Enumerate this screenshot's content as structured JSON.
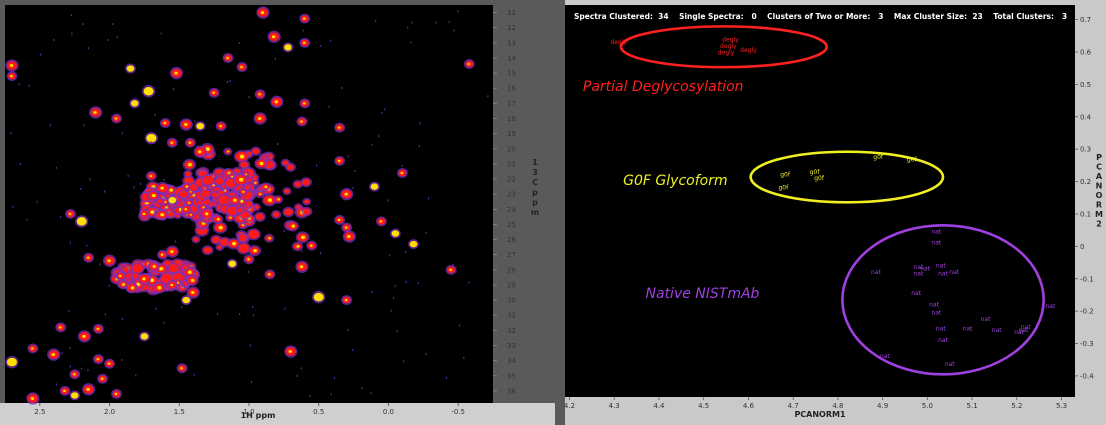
{
  "chart_data": [
    {
      "type": "heatmap",
      "xlabel": "1H ppm",
      "ylabel": "13C ppm",
      "xlim": [
        2.75,
        -0.75
      ],
      "ylim": [
        10.5,
        36.8
      ],
      "x_ticks": [
        "2.5",
        "2.0",
        "1.5",
        "1.0",
        "0.5",
        "0.0",
        "-0.5"
      ],
      "x_tick_values": [
        2.5,
        2.0,
        1.5,
        1.0,
        0.5,
        0.0,
        -0.5
      ],
      "y_ticks": [
        "11",
        "12",
        "13",
        "14",
        "15",
        "16",
        "17",
        "18",
        "19",
        "20",
        "21",
        "22",
        "23",
        "24",
        "25",
        "26",
        "27",
        "28",
        "29",
        "30",
        "31",
        "32",
        "33",
        "34",
        "35",
        "36"
      ],
      "y_tick_values": [
        11,
        12,
        13,
        14,
        15,
        16,
        17,
        18,
        19,
        20,
        21,
        22,
        23,
        24,
        25,
        26,
        27,
        28,
        29,
        30,
        31,
        32,
        33,
        34,
        35,
        36
      ],
      "colors": {
        "background": "#000000",
        "low": "#7b2fbe",
        "mid": "#ff1a1a",
        "high": "#ffe000"
      },
      "peaks": [
        {
          "x": 2.7,
          "y": 14.5
        },
        {
          "x": 2.7,
          "y": 15.2
        },
        {
          "x": 1.85,
          "y": 14.7
        },
        {
          "x": 1.52,
          "y": 15.0
        },
        {
          "x": 1.15,
          "y": 14.0
        },
        {
          "x": 1.05,
          "y": 14.6
        },
        {
          "x": 0.82,
          "y": 12.6
        },
        {
          "x": 0.72,
          "y": 13.3
        },
        {
          "x": 0.6,
          "y": 13.0
        },
        {
          "x": 0.9,
          "y": 11.0
        },
        {
          "x": 0.6,
          "y": 11.4
        },
        {
          "x": -0.58,
          "y": 14.4
        },
        {
          "x": 1.72,
          "y": 16.2
        },
        {
          "x": 1.25,
          "y": 16.3
        },
        {
          "x": 0.92,
          "y": 16.4
        },
        {
          "x": 0.8,
          "y": 16.9
        },
        {
          "x": 0.6,
          "y": 17.0
        },
        {
          "x": 1.82,
          "y": 17.0
        },
        {
          "x": 2.1,
          "y": 17.6
        },
        {
          "x": 1.95,
          "y": 18.0
        },
        {
          "x": 1.6,
          "y": 18.3
        },
        {
          "x": 1.45,
          "y": 18.4
        },
        {
          "x": 1.35,
          "y": 18.5
        },
        {
          "x": 1.2,
          "y": 18.5
        },
        {
          "x": 0.92,
          "y": 18.0
        },
        {
          "x": 0.62,
          "y": 18.2
        },
        {
          "x": 0.35,
          "y": 18.6
        },
        {
          "x": 1.7,
          "y": 19.3
        },
        {
          "x": 1.55,
          "y": 19.6
        },
        {
          "x": 1.42,
          "y": 19.6
        },
        {
          "x": 1.35,
          "y": 20.2
        },
        {
          "x": 0.35,
          "y": 20.8
        },
        {
          "x": 0.1,
          "y": 22.5
        },
        {
          "x": 0.3,
          "y": 23.0
        },
        {
          "x": -0.1,
          "y": 21.6
        },
        {
          "x": 1.7,
          "y": 21.8
        },
        {
          "x": 1.62,
          "y": 22.6
        },
        {
          "x": 1.55,
          "y": 23.4
        },
        {
          "x": 1.45,
          "y": 24.0
        },
        {
          "x": 1.3,
          "y": 24.3
        },
        {
          "x": 1.75,
          "y": 24.3
        },
        {
          "x": 2.28,
          "y": 24.3
        },
        {
          "x": 2.2,
          "y": 24.8
        },
        {
          "x": 0.35,
          "y": 24.7
        },
        {
          "x": 0.3,
          "y": 25.2
        },
        {
          "x": 0.28,
          "y": 25.8
        },
        {
          "x": 0.05,
          "y": 24.8
        },
        {
          "x": -0.05,
          "y": 25.6
        },
        {
          "x": 1.55,
          "y": 26.8
        },
        {
          "x": 1.62,
          "y": 27.0
        },
        {
          "x": 2.15,
          "y": 27.2
        },
        {
          "x": 2.0,
          "y": 27.4
        },
        {
          "x": 1.12,
          "y": 27.6
        },
        {
          "x": 1.0,
          "y": 27.3
        },
        {
          "x": 0.62,
          "y": 27.8
        },
        {
          "x": 0.55,
          "y": 26.4
        },
        {
          "x": 0.85,
          "y": 28.3
        },
        {
          "x": 0.5,
          "y": 29.8
        },
        {
          "x": 0.3,
          "y": 30.0
        },
        {
          "x": 1.92,
          "y": 28.4
        },
        {
          "x": 1.75,
          "y": 28.6
        },
        {
          "x": 1.55,
          "y": 29.0
        },
        {
          "x": 1.45,
          "y": 30.0
        },
        {
          "x": 1.4,
          "y": 29.5
        },
        {
          "x": 2.35,
          "y": 31.8
        },
        {
          "x": 2.08,
          "y": 31.9
        },
        {
          "x": 2.18,
          "y": 32.4
        },
        {
          "x": 1.75,
          "y": 32.4
        },
        {
          "x": 2.55,
          "y": 33.2
        },
        {
          "x": 2.4,
          "y": 33.6
        },
        {
          "x": 2.08,
          "y": 33.9
        },
        {
          "x": 2.0,
          "y": 34.2
        },
        {
          "x": 2.7,
          "y": 34.1
        },
        {
          "x": 2.25,
          "y": 34.9
        },
        {
          "x": 2.05,
          "y": 35.2
        },
        {
          "x": 2.15,
          "y": 35.9
        },
        {
          "x": 2.32,
          "y": 36.0
        },
        {
          "x": 2.25,
          "y": 36.3
        },
        {
          "x": 2.55,
          "y": 36.5
        },
        {
          "x": 1.95,
          "y": 36.2
        },
        {
          "x": 1.48,
          "y": 34.5
        },
        {
          "x": 0.7,
          "y": 33.4
        },
        {
          "x": -0.18,
          "y": 26.3
        },
        {
          "x": -0.45,
          "y": 28.0
        }
      ],
      "clusters": [
        {
          "x0": 1.45,
          "x1": 0.55,
          "y0": 20.0,
          "y1": 26.8
        },
        {
          "x0": 1.75,
          "x1": 1.3,
          "y0": 22.5,
          "y1": 24.5
        },
        {
          "x0": 1.95,
          "x1": 1.4,
          "y0": 27.6,
          "y1": 29.3
        },
        {
          "x0": 1.35,
          "x1": 1.0,
          "y0": 21.5,
          "y1": 24.8
        }
      ]
    },
    {
      "type": "scatter",
      "xlabel": "PCANORM1",
      "ylabel": "PCANORM2",
      "xlim": [
        4.19,
        5.33
      ],
      "ylim": [
        -0.465,
        0.745
      ],
      "x_ticks": [
        "4.2",
        "4.3",
        "4.4",
        "4.5",
        "4.6",
        "4.7",
        "4.8",
        "4.9",
        "5.0",
        "5.1",
        "5.2",
        "5.3"
      ],
      "x_tick_values": [
        4.2,
        4.3,
        4.4,
        4.5,
        4.6,
        4.7,
        4.8,
        4.9,
        5.0,
        5.1,
        5.2,
        5.3
      ],
      "y_ticks": [
        "0.7",
        "0.6",
        "0.5",
        "0.4",
        "0.3",
        "0.2",
        "0.1",
        "0",
        "-0.1",
        "-0.2",
        "-0.3",
        "-0.4"
      ],
      "y_tick_values": [
        0.7,
        0.6,
        0.5,
        0.4,
        0.3,
        0.2,
        0.1,
        0,
        -0.1,
        -0.2,
        -0.3,
        -0.4
      ],
      "stats_text": "Spectra Clustered:  34    Single Spectra:   0    Clusters of Two or More:   3    Max Cluster Size:  23    Total Clusters:   3",
      "series": [
        {
          "color": "#ff2020",
          "annotation": "Partial Deglycosylation",
          "ellipse": {
            "cx": 4.545,
            "cy": 0.616,
            "rx": 0.23,
            "ry": 0.063
          },
          "points": [
            {
              "label": "degly",
              "x": 4.31,
              "y": 0.625
            },
            {
              "label": "degly",
              "x": 4.56,
              "y": 0.632
            },
            {
              "label": "degly",
              "x": 4.555,
              "y": 0.613
            },
            {
              "label": "degly",
              "x": 4.6,
              "y": 0.6
            },
            {
              "label": "degly",
              "x": 4.55,
              "y": 0.592
            }
          ]
        },
        {
          "color": "#f0f020",
          "annotation": "G0F Glycoform",
          "ellipse": {
            "cx": 4.82,
            "cy": 0.214,
            "rx": 0.215,
            "ry": 0.078
          },
          "points": [
            {
              "label": "g0f",
              "x": 4.89,
              "y": 0.27
            },
            {
              "label": "g0f",
              "x": 4.965,
              "y": 0.262
            },
            {
              "label": "g0f",
              "x": 4.682,
              "y": 0.215
            },
            {
              "label": "g0f",
              "x": 4.748,
              "y": 0.224
            },
            {
              "label": "g0f",
              "x": 4.758,
              "y": 0.205
            },
            {
              "label": "g0f",
              "x": 4.678,
              "y": 0.175
            }
          ]
        },
        {
          "color": "#a040e0",
          "annotation": "Native NISTmAb",
          "ellipse": {
            "cx": 5.035,
            "cy": -0.165,
            "rx": 0.225,
            "ry": 0.23
          },
          "points": [
            {
              "label": "nat",
              "x": 5.02,
              "y": 0.04
            },
            {
              "label": "nat",
              "x": 5.02,
              "y": 0.005
            },
            {
              "label": "nat",
              "x": 4.885,
              "y": -0.085
            },
            {
              "label": "nat",
              "x": 4.98,
              "y": -0.07
            },
            {
              "label": "nat",
              "x": 4.995,
              "y": -0.075
            },
            {
              "label": "nat",
              "x": 5.03,
              "y": -0.065
            },
            {
              "label": "nat",
              "x": 4.98,
              "y": -0.09
            },
            {
              "label": "nat",
              "x": 5.035,
              "y": -0.09
            },
            {
              "label": "nat",
              "x": 5.06,
              "y": -0.085
            },
            {
              "label": "nat",
              "x": 4.975,
              "y": -0.15
            },
            {
              "label": "nat",
              "x": 5.015,
              "y": -0.185
            },
            {
              "label": "nat",
              "x": 5.02,
              "y": -0.21
            },
            {
              "label": "nat",
              "x": 5.275,
              "y": -0.19
            },
            {
              "label": "nat",
              "x": 5.13,
              "y": -0.23
            },
            {
              "label": "nat",
              "x": 5.22,
              "y": -0.255
            },
            {
              "label": "nat",
              "x": 5.215,
              "y": -0.265
            },
            {
              "label": "nat",
              "x": 5.03,
              "y": -0.26
            },
            {
              "label": "nat",
              "x": 5.09,
              "y": -0.26
            },
            {
              "label": "nat",
              "x": 5.155,
              "y": -0.265
            },
            {
              "label": "nat",
              "x": 5.205,
              "y": -0.27
            },
            {
              "label": "nat",
              "x": 5.035,
              "y": -0.295
            },
            {
              "label": "nat",
              "x": 4.905,
              "y": -0.345
            },
            {
              "label": "nat",
              "x": 5.05,
              "y": -0.37
            }
          ]
        }
      ]
    }
  ]
}
